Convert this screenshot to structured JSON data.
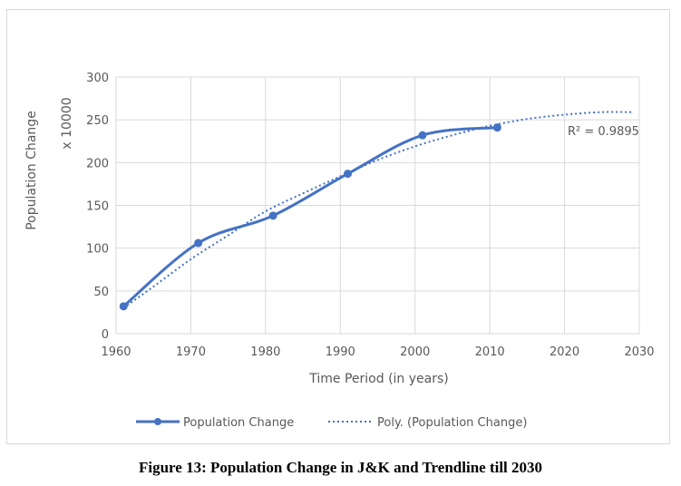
{
  "caption": "Figure 13: Population Change in J&K and Trendline till 2030",
  "colors": {
    "series": "#4472c4",
    "grid": "#d9d9d9",
    "text": "#595959"
  },
  "chart_data": {
    "type": "line",
    "title": "",
    "xlabel": "Time Period (in years)",
    "ylabel": "Population Change",
    "y_unit_label": "x 10000",
    "xlim": [
      1960,
      2030
    ],
    "ylim": [
      0,
      300
    ],
    "x_ticks": [
      1960,
      1970,
      1980,
      1990,
      2000,
      2010,
      2020,
      2030
    ],
    "y_ticks": [
      0,
      50,
      100,
      150,
      200,
      250,
      300
    ],
    "grid": true,
    "legend_position": "bottom",
    "series": [
      {
        "name": "Population Change",
        "style": "solid-smoothed-with-markers",
        "x": [
          1961,
          1971,
          1981,
          1991,
          2001,
          2011
        ],
        "values": [
          32,
          106,
          138,
          187,
          232,
          241
        ]
      },
      {
        "name": "Poly. (Population Change)",
        "style": "dotted-trendline",
        "x": [
          1961,
          1965,
          1970,
          1975,
          1980,
          1985,
          1990,
          1995,
          2000,
          2005,
          2010,
          2015,
          2020,
          2025,
          2029
        ],
        "values": [
          30,
          55,
          87,
          115,
          143,
          164,
          184,
          203,
          219,
          232,
          243,
          251,
          256,
          259,
          259
        ]
      }
    ],
    "annotation": "R² = 0.9895"
  }
}
